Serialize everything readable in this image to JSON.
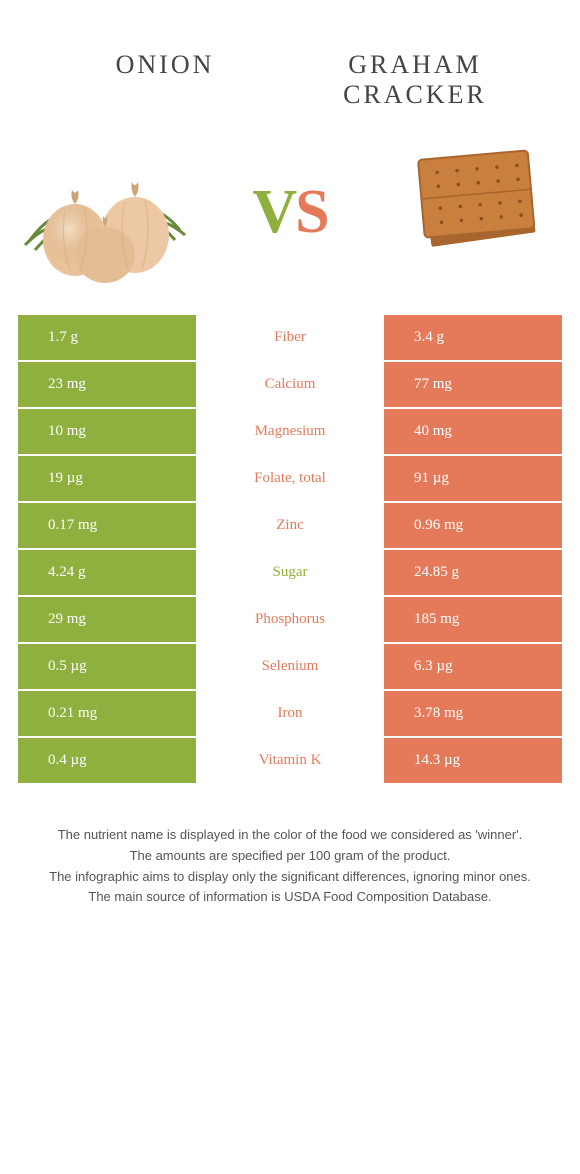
{
  "header": {
    "left_title": "Onion",
    "right_title": "Graham Cracker"
  },
  "vs": {
    "v": "V",
    "s": "S"
  },
  "colors": {
    "green": "#8fb03e",
    "orange": "#e47a5a",
    "onion_body": "#e8c29a",
    "onion_shadow": "#d4a878",
    "onion_leaf": "#6a8a3a",
    "cracker_face": "#c9803f",
    "cracker_edge": "#a8652e",
    "cracker_dot": "#8a5020"
  },
  "rows": [
    {
      "left": "1.7 g",
      "label": "Fiber",
      "right": "3.4 g",
      "winner": "right"
    },
    {
      "left": "23 mg",
      "label": "Calcium",
      "right": "77 mg",
      "winner": "right"
    },
    {
      "left": "10 mg",
      "label": "Magnesium",
      "right": "40 mg",
      "winner": "right"
    },
    {
      "left": "19 µg",
      "label": "Folate, total",
      "right": "91 µg",
      "winner": "right"
    },
    {
      "left": "0.17 mg",
      "label": "Zinc",
      "right": "0.96 mg",
      "winner": "right"
    },
    {
      "left": "4.24 g",
      "label": "Sugar",
      "right": "24.85 g",
      "winner": "left"
    },
    {
      "left": "29 mg",
      "label": "Phosphorus",
      "right": "185 mg",
      "winner": "right"
    },
    {
      "left": "0.5 µg",
      "label": "Selenium",
      "right": "6.3 µg",
      "winner": "right"
    },
    {
      "left": "0.21 mg",
      "label": "Iron",
      "right": "3.78 mg",
      "winner": "right"
    },
    {
      "left": "0.4 µg",
      "label": "Vitamin K",
      "right": "14.3 µg",
      "winner": "right"
    }
  ],
  "footer": {
    "line1": "The nutrient name is displayed in the color of the food we considered as 'winner'.",
    "line2": "The amounts are specified per 100 gram of the product.",
    "line3": "The infographic aims to display only the significant differences, ignoring minor ones.",
    "line4": "The main source of information is USDA Food Composition Database."
  }
}
